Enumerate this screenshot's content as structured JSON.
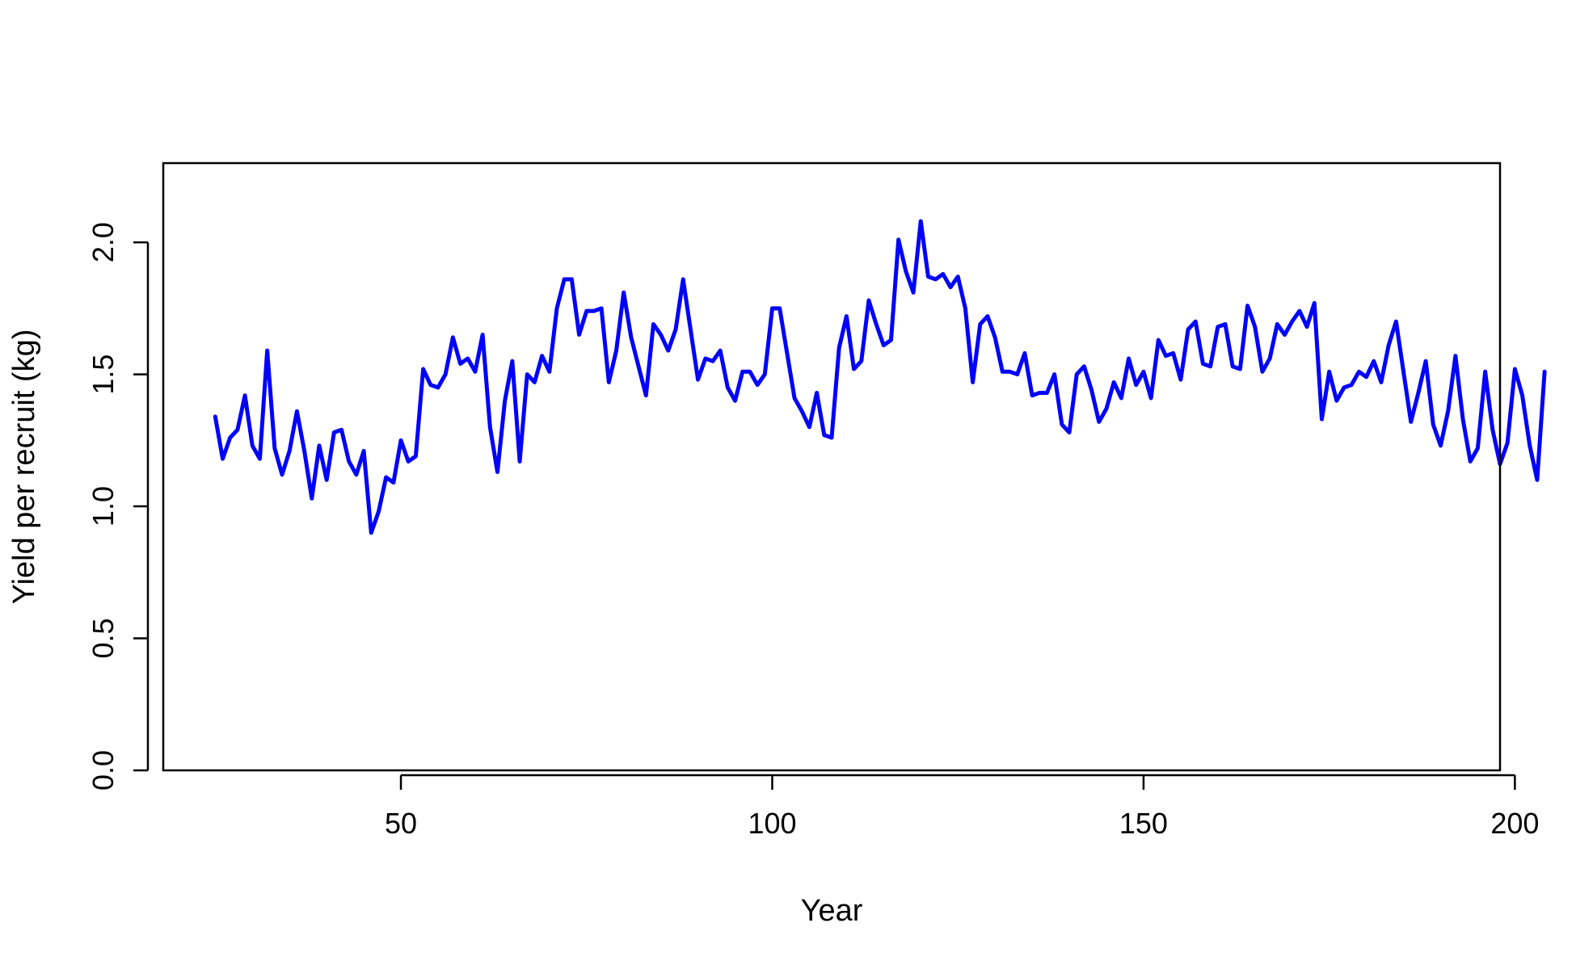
{
  "chart_data": {
    "type": "line",
    "title": "",
    "xlabel": "Year",
    "ylabel": "Yield per recruit (kg)",
    "xlim": [
      18,
      198
    ],
    "ylim": [
      0,
      2.3
    ],
    "x_ticks": [
      50,
      100,
      150,
      200
    ],
    "y_ticks": [
      0.0,
      0.5,
      1.0,
      1.5,
      2.0
    ],
    "x_tick_labels": [
      "50",
      "100",
      "150",
      "200"
    ],
    "y_tick_labels": [
      "0.0",
      "0.5",
      "1.0",
      "1.5",
      "2.0"
    ],
    "grid": false,
    "legend": "none",
    "line_color": "#0000FF",
    "x_start": 25,
    "values": [
      1.34,
      1.18,
      1.26,
      1.29,
      1.42,
      1.23,
      1.18,
      1.59,
      1.22,
      1.12,
      1.21,
      1.36,
      1.21,
      1.03,
      1.23,
      1.1,
      1.28,
      1.29,
      1.17,
      1.12,
      1.21,
      0.9,
      0.98,
      1.11,
      1.09,
      1.25,
      1.17,
      1.19,
      1.52,
      1.46,
      1.45,
      1.5,
      1.64,
      1.54,
      1.56,
      1.51,
      1.65,
      1.3,
      1.13,
      1.4,
      1.55,
      1.17,
      1.5,
      1.47,
      1.57,
      1.51,
      1.75,
      1.86,
      1.86,
      1.65,
      1.74,
      1.74,
      1.75,
      1.47,
      1.59,
      1.81,
      1.64,
      1.53,
      1.42,
      1.69,
      1.65,
      1.59,
      1.67,
      1.86,
      1.67,
      1.48,
      1.56,
      1.55,
      1.59,
      1.45,
      1.4,
      1.51,
      1.51,
      1.46,
      1.5,
      1.75,
      1.75,
      1.58,
      1.41,
      1.36,
      1.3,
      1.43,
      1.27,
      1.26,
      1.6,
      1.72,
      1.52,
      1.55,
      1.78,
      1.69,
      1.61,
      1.63,
      2.01,
      1.89,
      1.81,
      2.08,
      1.87,
      1.86,
      1.88,
      1.83,
      1.87,
      1.75,
      1.47,
      1.69,
      1.72,
      1.64,
      1.51,
      1.51,
      1.5,
      1.58,
      1.42,
      1.43,
      1.43,
      1.5,
      1.31,
      1.28,
      1.5,
      1.53,
      1.44,
      1.32,
      1.37,
      1.47,
      1.41,
      1.56,
      1.46,
      1.51,
      1.41,
      1.63,
      1.57,
      1.58,
      1.48,
      1.67,
      1.7,
      1.54,
      1.53,
      1.68,
      1.69,
      1.53,
      1.52,
      1.76,
      1.68,
      1.51,
      1.56,
      1.69,
      1.65,
      1.7,
      1.74,
      1.68,
      1.77,
      1.33,
      1.51,
      1.4,
      1.45,
      1.46,
      1.51,
      1.49,
      1.55,
      1.47,
      1.61,
      1.7,
      1.51,
      1.32,
      1.43,
      1.55,
      1.31,
      1.23,
      1.36,
      1.57,
      1.33,
      1.17,
      1.22,
      1.51,
      1.29,
      1.16,
      1.24,
      1.52,
      1.42,
      1.23,
      1.1,
      1.51
    ]
  }
}
